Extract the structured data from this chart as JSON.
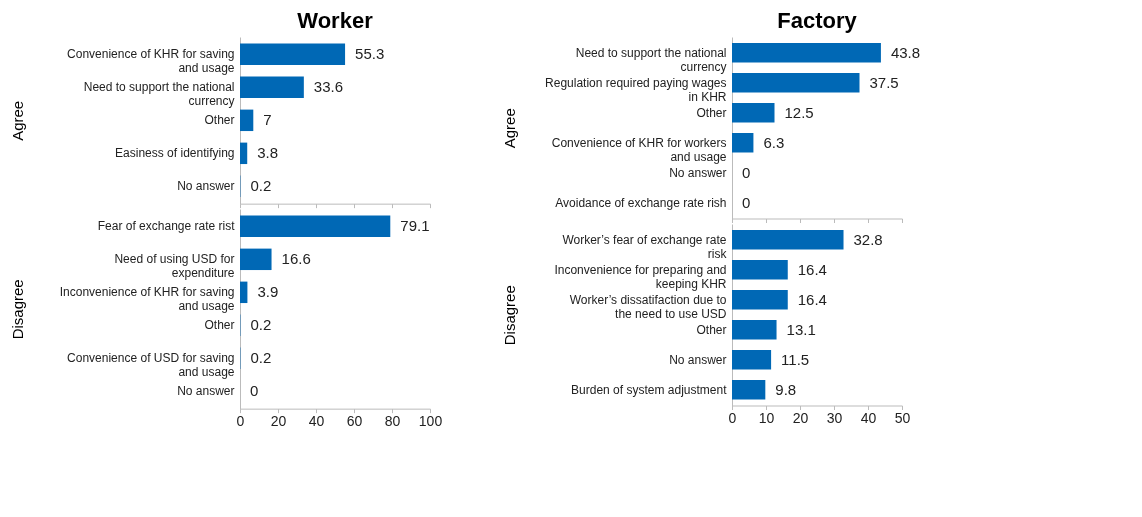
{
  "chart_data": [
    {
      "type": "bar",
      "orientation": "horizontal",
      "title": "Worker",
      "ylabel": "Agree",
      "categories": [
        "Convenience of KHR for saving and usage",
        "Need to support the national currency",
        "Other",
        "Easiness of identifying",
        "No answer"
      ],
      "values": [
        55.3,
        33.6,
        7,
        3.8,
        0.2
      ],
      "color": "#0068b5",
      "xlim": [
        0,
        100
      ],
      "xticks": [
        0,
        20,
        40,
        60,
        80,
        100
      ],
      "tick_labels": "y",
      "data_labels": true,
      "grid": false
    },
    {
      "type": "bar",
      "orientation": "horizontal",
      "ylabel": "Disagree",
      "categories": [
        "Fear of exchange rate rist",
        "Need of using USD for expenditure",
        "Inconvenience of KHR for saving and usage",
        "Other",
        "Convenience of USD for saving and usage",
        "No answer"
      ],
      "values": [
        79.1,
        16.6,
        3.9,
        0.2,
        0.2,
        0
      ],
      "color": "#0068b5",
      "xlim": [
        0,
        100
      ],
      "xticks": [
        0,
        20,
        40,
        60,
        80,
        100
      ],
      "data_labels": true,
      "grid": false
    },
    {
      "type": "bar",
      "orientation": "horizontal",
      "title": "Factory",
      "ylabel": "Agree",
      "categories": [
        "Need to support the national currency",
        "Regulation required paying wages in KHR",
        "Other",
        "Convenience of KHR for workers and usage",
        "No answer",
        "Avoidance of exchange rate rish"
      ],
      "values": [
        43.8,
        37.5,
        12.5,
        6.3,
        0,
        0
      ],
      "color": "#0068b5",
      "xlim": [
        0,
        50
      ],
      "xticks": [
        0,
        10,
        20,
        30,
        40,
        50
      ],
      "tick_labels": "y",
      "data_labels": true,
      "grid": false
    },
    {
      "type": "bar",
      "orientation": "horizontal",
      "ylabel": "Disagree",
      "categories": [
        "Worker’s  fear of exchange rate risk",
        "Inconvenience for preparing and keeping KHR",
        "Worker’s dissatifaction due to the need to use USD",
        "Other",
        "No answer",
        "Burden of system adjustment"
      ],
      "values": [
        32.8,
        16.4,
        16.4,
        13.1,
        11.5,
        9.8
      ],
      "color": "#0068b5",
      "xlim": [
        0,
        50
      ],
      "xticks": [
        0,
        10,
        20,
        30,
        40,
        50
      ],
      "data_labels": true,
      "grid": false
    }
  ]
}
